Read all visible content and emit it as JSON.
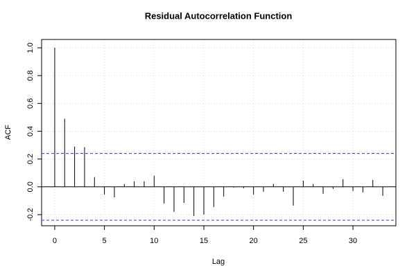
{
  "chart_data": {
    "type": "stem",
    "title": "Residual Autocorrelation Function",
    "xlabel": "Lag",
    "ylabel": "ACF",
    "x": [
      0,
      1,
      2,
      3,
      4,
      5,
      6,
      7,
      8,
      9,
      10,
      11,
      12,
      13,
      14,
      15,
      16,
      17,
      18,
      19,
      20,
      21,
      22,
      23,
      24,
      25,
      26,
      27,
      28,
      29,
      30,
      31,
      32,
      33
    ],
    "values": [
      1.0,
      0.49,
      0.29,
      0.285,
      0.07,
      -0.055,
      -0.075,
      0.02,
      0.04,
      0.04,
      0.08,
      -0.12,
      -0.18,
      -0.115,
      -0.21,
      -0.2,
      -0.145,
      -0.07,
      -0.005,
      -0.01,
      -0.055,
      -0.035,
      0.02,
      -0.035,
      -0.135,
      0.045,
      0.02,
      -0.05,
      -0.015,
      0.055,
      -0.03,
      -0.04,
      0.05,
      -0.065
    ],
    "color": "#000000",
    "xlim": [
      -1.32,
      34.32
    ],
    "xticks": [
      0,
      5,
      10,
      15,
      20,
      25,
      30
    ],
    "ylim": [
      -0.28,
      1.06
    ],
    "yticks": [
      {
        "value": -0.2,
        "label": "-0.2"
      },
      {
        "value": 0,
        "label": "0.0"
      },
      0.2,
      0.4,
      0.6,
      0.8,
      {
        "value": 1,
        "label": "1.0"
      }
    ],
    "conf_limits": [
      0.24,
      -0.24
    ],
    "conf_color": "#3333ff",
    "grid": true
  }
}
